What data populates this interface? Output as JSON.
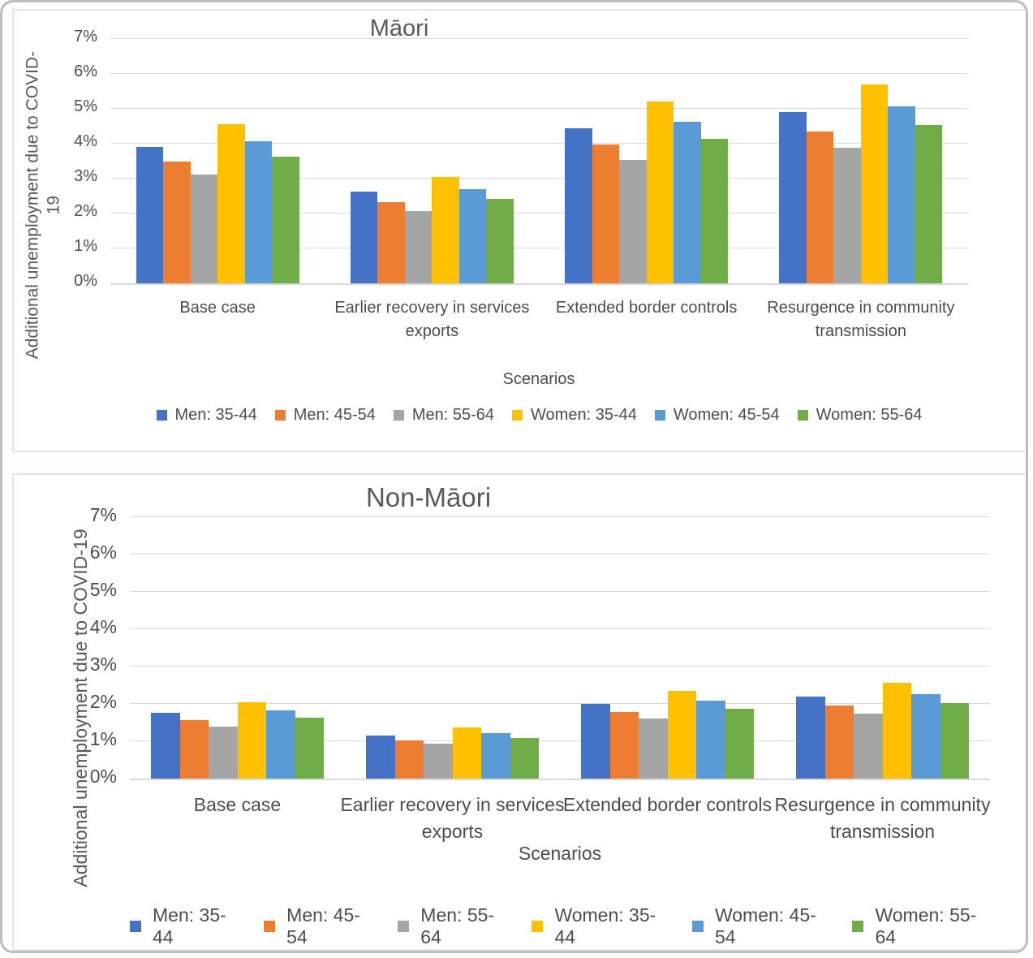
{
  "colors": {
    "series_blue": "#4472C4",
    "series_orange": "#ED7D31",
    "series_gray": "#A5A5A5",
    "series_yellow": "#FFC000",
    "series_light_blue": "#5B9BD5",
    "series_green": "#70AD47",
    "gridline": "#D9D9D9",
    "text": "#595959"
  },
  "chart_data": [
    {
      "type": "bar",
      "title": "Māori",
      "ylabel": "Additional unemployment due to COVID-\n19",
      "xlabel": "Scenarios",
      "ylim": [
        0,
        7
      ],
      "y_unit": "%",
      "yticks": [
        "0%",
        "1%",
        "2%",
        "3%",
        "4%",
        "5%",
        "6%",
        "7%"
      ],
      "grid": true,
      "legend_position": "bottom",
      "categories": [
        "Base case",
        "Earlier recovery in services\nexports",
        "Extended border controls",
        "Resurgence in community\ntransmission"
      ],
      "series": [
        {
          "name": "Men: 35-44",
          "color": "#4472C4",
          "values": [
            3.9,
            2.62,
            4.45,
            4.9
          ]
        },
        {
          "name": "Men: 45-54",
          "color": "#ED7D31",
          "values": [
            3.48,
            2.33,
            3.97,
            4.36
          ]
        },
        {
          "name": "Men: 55-64",
          "color": "#A5A5A5",
          "values": [
            3.12,
            2.08,
            3.54,
            3.89
          ]
        },
        {
          "name": "Women: 35-44",
          "color": "#FFC000",
          "values": [
            4.55,
            3.04,
            5.2,
            5.7
          ]
        },
        {
          "name": "Women: 45-54",
          "color": "#5B9BD5",
          "values": [
            4.06,
            2.7,
            4.62,
            5.07
          ]
        },
        {
          "name": "Women: 55-64",
          "color": "#70AD47",
          "values": [
            3.62,
            2.42,
            4.14,
            4.53
          ]
        }
      ]
    },
    {
      "type": "bar",
      "title": "Non-Māori",
      "ylabel": "Additional unemployment due to COVID-19",
      "xlabel": "Scenarios",
      "ylim": [
        0,
        7
      ],
      "y_unit": "%",
      "yticks": [
        "0%",
        "1%",
        "2%",
        "3%",
        "4%",
        "5%",
        "6%",
        "7%"
      ],
      "grid": true,
      "legend_position": "bottom",
      "categories": [
        "Base case",
        "Earlier recovery in services\nexports",
        "Extended border controls",
        "Resurgence in community\ntransmission"
      ],
      "series": [
        {
          "name": "Men: 35-44",
          "color": "#4472C4",
          "values": [
            1.76,
            1.16,
            2.01,
            2.2
          ]
        },
        {
          "name": "Men: 45-54",
          "color": "#ED7D31",
          "values": [
            1.57,
            1.03,
            1.79,
            1.96
          ]
        },
        {
          "name": "Men: 55-64",
          "color": "#A5A5A5",
          "values": [
            1.4,
            0.93,
            1.6,
            1.74
          ]
        },
        {
          "name": "Women: 35-44",
          "color": "#FFC000",
          "values": [
            2.05,
            1.36,
            2.34,
            2.56
          ]
        },
        {
          "name": "Women: 45-54",
          "color": "#5B9BD5",
          "values": [
            1.82,
            1.22,
            2.08,
            2.27
          ]
        },
        {
          "name": "Women: 55-64",
          "color": "#70AD47",
          "values": [
            1.62,
            1.08,
            1.86,
            2.03
          ]
        }
      ]
    }
  ]
}
